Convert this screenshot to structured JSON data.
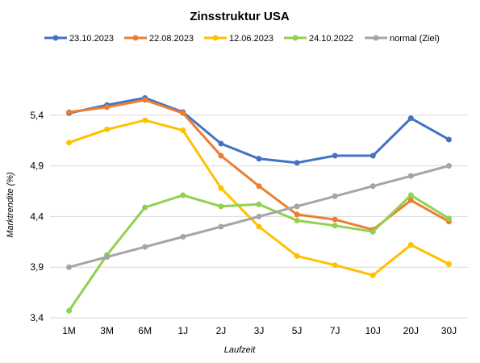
{
  "chart_data": {
    "type": "line",
    "title": "Zinsstruktur USA",
    "xlabel": "Laufzeit",
    "ylabel": "Marktrendite (%)",
    "categories": [
      "1M",
      "3M",
      "6M",
      "1J",
      "2J",
      "3J",
      "5J",
      "7J",
      "10J",
      "20J",
      "30J"
    ],
    "ylim": [
      3.4,
      5.9
    ],
    "yticks": [
      "3,4",
      "3,9",
      "4,4",
      "4,9",
      "5,4"
    ],
    "ytick_values": [
      3.4,
      3.9,
      4.4,
      4.9,
      5.4
    ],
    "grid": true,
    "legend_position": "top",
    "series": [
      {
        "name": "23.10.2023",
        "color": "#4472c4",
        "values": [
          5.42,
          5.5,
          5.57,
          5.43,
          5.12,
          4.97,
          4.93,
          5.0,
          5.0,
          5.37,
          5.16
        ]
      },
      {
        "name": "22.08.2023",
        "color": "#ed7d31",
        "values": [
          5.43,
          5.48,
          5.55,
          5.42,
          5.0,
          4.7,
          4.42,
          4.37,
          4.27,
          4.56,
          4.35
        ]
      },
      {
        "name": "12.06.2023",
        "color": "#ffc000",
        "values": [
          5.13,
          5.26,
          5.35,
          5.25,
          4.68,
          4.3,
          4.01,
          3.92,
          3.82,
          4.12,
          3.93
        ]
      },
      {
        "name": "24.10.2022",
        "color": "#92d050",
        "values": [
          3.47,
          4.02,
          4.49,
          4.61,
          4.5,
          4.52,
          4.36,
          4.31,
          4.25,
          4.61,
          4.38
        ]
      },
      {
        "name": "normal (Ziel)",
        "color": "#a5a5a5",
        "values": [
          3.9,
          4.0,
          4.1,
          4.2,
          4.3,
          4.4,
          4.5,
          4.6,
          4.7,
          4.8,
          4.9
        ]
      }
    ]
  }
}
